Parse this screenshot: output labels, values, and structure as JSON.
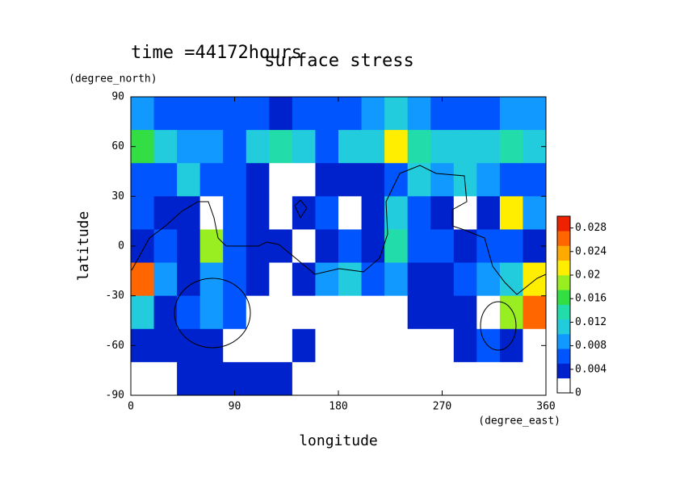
{
  "chart_data": {
    "type": "contour",
    "title": "surface stress",
    "subtitle": "time =44172hours",
    "x_label": "longitude",
    "y_label": "latitude",
    "x_unit": "(degree_east)",
    "y_unit": "(degree_north)",
    "xlim": [
      0,
      360
    ],
    "ylim": [
      -90,
      90
    ],
    "xticks": [
      0,
      90,
      180,
      270,
      360
    ],
    "yticks": [
      -90,
      -60,
      -30,
      0,
      30,
      60,
      90
    ],
    "clim": [
      0,
      0.03
    ],
    "cticks": [
      0,
      0.004,
      0.008,
      0.012,
      0.016,
      0.02,
      0.024,
      0.028
    ],
    "colors": [
      "#ffffff",
      "#0022cc",
      "#0055ff",
      "#1199ff",
      "#22ccdd",
      "#22ddaa",
      "#33dd44",
      "#99ee22",
      "#ffee00",
      "#ffaa00",
      "#ff6600",
      "#ee2200"
    ],
    "lon": [
      10,
      30,
      50,
      70,
      90,
      110,
      130,
      150,
      170,
      190,
      210,
      230,
      250,
      270,
      290,
      310,
      330,
      350
    ],
    "lat": [
      80,
      60,
      40,
      20,
      0,
      -20,
      -40,
      -60,
      -80
    ],
    "z": [
      [
        0.008,
        0.007,
        0.006,
        0.005,
        0.005,
        0.005,
        0.004,
        0.006,
        0.006,
        0.007,
        0.008,
        0.01,
        0.008,
        0.007,
        0.006,
        0.007,
        0.008,
        0.008
      ],
      [
        0.016,
        0.01,
        0.008,
        0.008,
        0.007,
        0.01,
        0.014,
        0.01,
        0.006,
        0.012,
        0.012,
        0.022,
        0.014,
        0.01,
        0.012,
        0.01,
        0.014,
        0.01
      ],
      [
        0.006,
        0.006,
        0.012,
        0.006,
        0.006,
        0.004,
        0.001,
        0.001,
        0.004,
        0.004,
        0.004,
        0.006,
        0.01,
        0.008,
        0.01,
        0.008,
        0.006,
        0.006
      ],
      [
        0.005,
        0.004,
        0.003,
        0.001,
        0.005,
        0.003,
        0.001,
        0.004,
        0.006,
        0.001,
        0.003,
        0.012,
        0.006,
        0.004,
        0.001,
        0.004,
        0.02,
        0.008
      ],
      [
        0.004,
        0.005,
        0.004,
        0.018,
        0.006,
        0.004,
        0.004,
        0.001,
        0.004,
        0.006,
        0.004,
        0.014,
        0.006,
        0.006,
        0.004,
        0.006,
        0.006,
        0.004
      ],
      [
        0.026,
        0.008,
        0.004,
        0.008,
        0.006,
        0.004,
        0.001,
        0.004,
        0.008,
        0.01,
        0.006,
        0.008,
        0.004,
        0.004,
        0.006,
        0.008,
        0.012,
        0.02
      ],
      [
        0.012,
        0.004,
        0.006,
        0.008,
        0.006,
        0.002,
        0.001,
        0.001,
        0.001,
        0.001,
        0.001,
        0.002,
        0.004,
        0.004,
        0.004,
        0.002,
        0.018,
        0.026
      ],
      [
        0.004,
        0.004,
        0.004,
        0.003,
        0.001,
        0.001,
        0.001,
        0.003,
        0.001,
        0.001,
        0.001,
        0.001,
        0.001,
        0.001,
        0.004,
        0.006,
        0.004,
        0.001
      ],
      [
        0.001,
        0.001,
        0.003,
        0.003,
        0.003,
        0.003,
        0.003,
        0.001,
        0.001,
        0.001,
        0.001,
        0.001,
        0.001,
        0.001,
        0.001,
        0.001,
        0.001,
        0.001
      ]
    ]
  }
}
